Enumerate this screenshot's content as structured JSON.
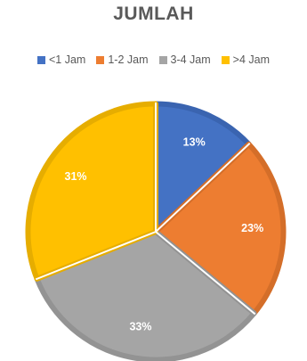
{
  "chart_data": {
    "type": "pie",
    "title": "JUMLAH",
    "categories": [
      "<1 Jam",
      "1-2 Jam",
      "3-4 Jam",
      ">4 Jam"
    ],
    "values": [
      13,
      23,
      33,
      31
    ],
    "data_labels": [
      "13%",
      "23%",
      "33%",
      "31%"
    ],
    "colors": [
      "#4472C4",
      "#ED7D31",
      "#A5A5A5",
      "#FFC000"
    ],
    "border_colors": [
      "#3A64B0",
      "#D46E29",
      "#939393",
      "#E6AD00"
    ],
    "legend_position": "top"
  }
}
